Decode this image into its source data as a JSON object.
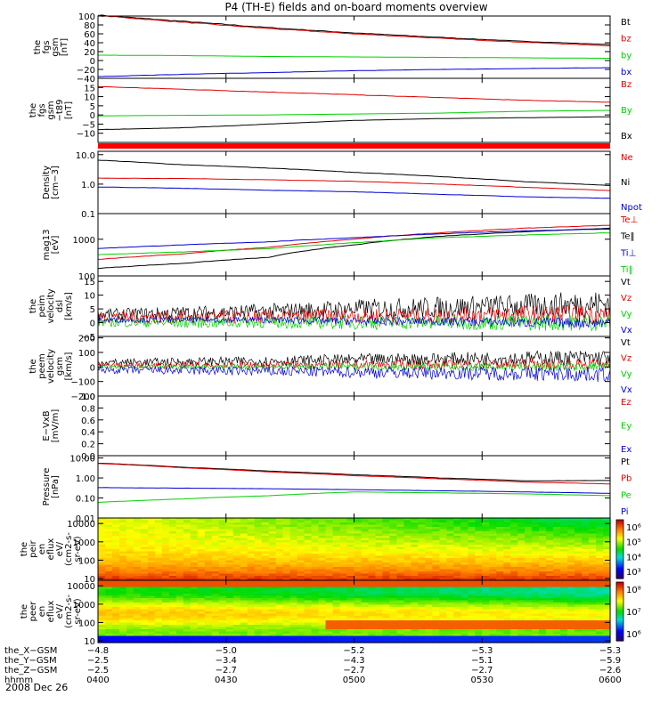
{
  "title": "P4 (TH-E) fields and on-board moments overview",
  "date": "2008 Dec 26",
  "colors": {
    "black": "#000000",
    "red": "#e00000",
    "green": "#00d000",
    "blue": "#0000d0",
    "bar": "#ff0000"
  },
  "chart_data": [
    {
      "id": "p1",
      "type": "line",
      "ylabel": [
        "the",
        "fgs",
        "gsm",
        "[nT]"
      ],
      "ylim": [
        -40,
        100
      ],
      "yticks": [
        {
          "v": 100,
          "t": "100"
        },
        {
          "v": 80,
          "t": "80"
        },
        {
          "v": 60,
          "t": "60"
        },
        {
          "v": 40,
          "t": "40"
        },
        {
          "v": 20,
          "t": "20"
        },
        {
          "v": 0,
          "t": "0"
        },
        {
          "v": -20,
          "t": "−20"
        },
        {
          "v": -40,
          "t": "−40"
        }
      ],
      "series": [
        {
          "name": "Bt",
          "color": "black",
          "values": [
            102,
            88,
            74,
            62,
            52,
            43,
            36
          ]
        },
        {
          "name": "bz",
          "color": "red",
          "values": [
            101,
            86,
            72,
            60,
            50,
            41,
            33
          ]
        },
        {
          "name": "by",
          "color": "green",
          "values": [
            12,
            11,
            9,
            8,
            7,
            6,
            5
          ]
        },
        {
          "name": "bx",
          "color": "blue",
          "values": [
            -36,
            -31,
            -27,
            -23,
            -20,
            -18,
            -16
          ]
        }
      ]
    },
    {
      "id": "p2",
      "type": "line",
      "ylabel": [
        "the",
        "fgs",
        "gsm",
        "−t89",
        "[nT]"
      ],
      "ylim": [
        -15,
        20
      ],
      "yticks": [
        {
          "v": 15,
          "t": "15"
        },
        {
          "v": 10,
          "t": "10"
        },
        {
          "v": 5,
          "t": "5"
        },
        {
          "v": 0,
          "t": "0"
        },
        {
          "v": -5,
          "t": "−5"
        },
        {
          "v": -10,
          "t": "−10"
        }
      ],
      "series": [
        {
          "name": "Bz",
          "color": "red",
          "values": [
            15.5,
            14,
            12.5,
            11,
            9.5,
            8,
            7
          ]
        },
        {
          "name": "By",
          "color": "green",
          "values": [
            -0.5,
            -0.2,
            0,
            0.5,
            1,
            2,
            2.5
          ]
        },
        {
          "name": "Bx",
          "color": "black",
          "values": [
            -8,
            -7,
            -5,
            -3,
            -2,
            -1.5,
            -1
          ]
        }
      ]
    },
    {
      "id": "p3",
      "type": "line",
      "scale": "log",
      "ylabel": [
        "Density",
        "[cm−3]"
      ],
      "ylim": [
        0.1,
        13
      ],
      "yticks": [
        {
          "v": 10,
          "t": "10.0"
        },
        {
          "v": 1,
          "t": "1.0"
        },
        {
          "v": 0.1,
          "t": "0.1"
        }
      ],
      "series": [
        {
          "name": "Ne",
          "color": "red",
          "values": [
            1.6,
            1.55,
            1.4,
            1.25,
            1.0,
            0.78,
            0.6
          ]
        },
        {
          "name": "Ni",
          "color": "black",
          "values": [
            6.5,
            4.5,
            3.5,
            2.5,
            1.8,
            1.2,
            0.9
          ]
        },
        {
          "name": "Npot",
          "color": "blue",
          "values": [
            0.8,
            0.72,
            0.62,
            0.55,
            0.45,
            0.37,
            0.33
          ]
        }
      ]
    },
    {
      "id": "p4",
      "type": "line",
      "scale": "log",
      "ylabel": [
        "mag13",
        "[eV]"
      ],
      "ylim": [
        100,
        5000
      ],
      "yticks": [
        {
          "v": 1000,
          "t": "1000"
        },
        {
          "v": 100,
          "t": "100"
        }
      ],
      "series": [
        {
          "name": "Te⊥",
          "color": "red",
          "values": [
            280,
            400,
            600,
            1000,
            1500,
            2000,
            2400
          ]
        },
        {
          "name": "Te‖",
          "color": "black",
          "values": [
            160,
            220,
            320,
            700,
            1200,
            1600,
            2000
          ]
        },
        {
          "name": "Ti⊥",
          "color": "blue",
          "values": [
            560,
            700,
            850,
            1100,
            1400,
            1700,
            1900
          ]
        },
        {
          "name": "Ti‖",
          "color": "green",
          "values": [
            380,
            450,
            550,
            800,
            1100,
            1300,
            1500
          ]
        }
      ]
    },
    {
      "id": "p5",
      "type": "line",
      "noisy": true,
      "ylabel": [
        "the",
        "peim",
        "velocity",
        "dsl",
        "[km/s]"
      ],
      "ylim": [
        -5,
        17
      ],
      "yticks": [
        {
          "v": 15,
          "t": "15"
        },
        {
          "v": 10,
          "t": "10"
        },
        {
          "v": 5,
          "t": "5"
        },
        {
          "v": 0,
          "t": "0"
        },
        {
          "v": -5,
          "t": "−5"
        }
      ],
      "series": [
        {
          "name": "Vt",
          "color": "black",
          "base": [
            3,
            3.5,
            4,
            5,
            5.5,
            6,
            7
          ],
          "amp": [
            2,
            2.5,
            3,
            3.5,
            4,
            4.5,
            5
          ]
        },
        {
          "name": "Vz",
          "color": "red",
          "base": [
            2,
            2,
            2,
            2.5,
            2.5,
            3,
            3
          ],
          "amp": [
            2,
            2.5,
            2.5,
            3,
            3,
            3.5,
            3.5
          ]
        },
        {
          "name": "Vy",
          "color": "green",
          "base": [
            0,
            0,
            0,
            0,
            0,
            0,
            0
          ],
          "amp": [
            1.5,
            2,
            2,
            2.5,
            2.5,
            3,
            3
          ]
        },
        {
          "name": "Vx",
          "color": "blue",
          "base": [
            1,
            1,
            1,
            0.5,
            0.5,
            0,
            0
          ],
          "amp": [
            1,
            1,
            1.2,
            1.5,
            1.5,
            1.8,
            2
          ]
        }
      ]
    },
    {
      "id": "p6",
      "type": "line",
      "noisy": true,
      "ylabel": [
        "the",
        "peem",
        "velocity",
        "gsm",
        "[km/s]"
      ],
      "ylim": [
        -200,
        210
      ],
      "yticks": [
        {
          "v": 200,
          "t": "200"
        },
        {
          "v": 100,
          "t": "100"
        },
        {
          "v": 0,
          "t": "0"
        },
        {
          "v": -100,
          "t": "−100"
        },
        {
          "v": -200,
          "t": "−200"
        }
      ],
      "series": [
        {
          "name": "Vt",
          "color": "black",
          "base": [
            30,
            35,
            40,
            50,
            55,
            60,
            65
          ],
          "amp": [
            25,
            30,
            35,
            40,
            45,
            50,
            55
          ]
        },
        {
          "name": "Vz",
          "color": "red",
          "base": [
            10,
            10,
            12,
            15,
            15,
            18,
            20
          ],
          "amp": [
            20,
            25,
            28,
            30,
            32,
            35,
            38
          ]
        },
        {
          "name": "Vy",
          "color": "green",
          "base": [
            0,
            0,
            0,
            0,
            0,
            0,
            0
          ],
          "amp": [
            15,
            18,
            20,
            22,
            25,
            28,
            30
          ]
        },
        {
          "name": "Vx",
          "color": "blue",
          "base": [
            -20,
            -25,
            -30,
            -35,
            -40,
            -45,
            -50
          ],
          "amp": [
            25,
            30,
            35,
            40,
            45,
            50,
            55
          ]
        }
      ]
    },
    {
      "id": "p7",
      "type": "line",
      "ylabel": [
        "E−VxB",
        "[mV/m]"
      ],
      "ylim": [
        0,
        1
      ],
      "yticks": [
        {
          "v": 1,
          "t": "1.0"
        },
        {
          "v": 0.8,
          "t": "0.8"
        },
        {
          "v": 0.6,
          "t": "0.6"
        },
        {
          "v": 0.4,
          "t": "0.4"
        },
        {
          "v": 0.2,
          "t": "0.2"
        },
        {
          "v": 0,
          "t": "0.0"
        }
      ],
      "series": [
        {
          "name": "Ez",
          "color": "red",
          "values": []
        },
        {
          "name": "Ey",
          "color": "green",
          "values": []
        },
        {
          "name": "Ex",
          "color": "blue",
          "values": []
        }
      ]
    },
    {
      "id": "p8",
      "type": "line",
      "scale": "log",
      "ylabel": [
        "Pressure",
        "[nPa]"
      ],
      "ylim": [
        0.01,
        13
      ],
      "yticks": [
        {
          "v": 10,
          "t": "10.00"
        },
        {
          "v": 1,
          "t": "1.00"
        },
        {
          "v": 0.1,
          "t": "0.10"
        },
        {
          "v": 0.01,
          "t": "0.01"
        }
      ],
      "series": [
        {
          "name": "Pt",
          "color": "black",
          "values": [
            5.5,
            3.4,
            2.2,
            1.45,
            1.0,
            0.72,
            0.75
          ]
        },
        {
          "name": "Pb",
          "color": "red",
          "values": [
            5.3,
            3.2,
            2.0,
            1.3,
            0.9,
            0.62,
            0.5
          ]
        },
        {
          "name": "Pe",
          "color": "green",
          "values": [
            0.06,
            0.09,
            0.13,
            0.2,
            0.18,
            0.16,
            0.13
          ]
        },
        {
          "name": "Pi",
          "color": "blue",
          "values": [
            0.33,
            0.31,
            0.29,
            0.26,
            0.23,
            0.2,
            0.17
          ]
        }
      ]
    },
    {
      "id": "p9",
      "type": "heatmap",
      "ylabel": [
        "the",
        "peir",
        "en",
        "eflux",
        "eV/",
        "(cm2-s-",
        "sr-eV)"
      ],
      "ylim": [
        8,
        20000
      ],
      "yticks": [
        {
          "v": 10000,
          "t": "10000"
        },
        {
          "v": 1000,
          "t": "1000"
        },
        {
          "v": 100,
          "t": "100"
        },
        {
          "v": 10,
          "t": "10"
        }
      ],
      "colorbar": [
        "10⁶",
        "10⁵",
        "10⁴",
        "10³"
      ],
      "crange": [
        2.5,
        6.8
      ]
    },
    {
      "id": "p10",
      "type": "heatmap",
      "ylabel": [
        "the",
        "peer",
        "en",
        "eflux",
        "eV/",
        "(cm2-s-",
        "sr-eV)"
      ],
      "ylim": [
        8,
        20000
      ],
      "yticks": [
        {
          "v": 10000,
          "t": "10000"
        },
        {
          "v": 1000,
          "t": "1000"
        },
        {
          "v": 100,
          "t": "100"
        },
        {
          "v": 10,
          "t": "10"
        }
      ],
      "colorbar": [
        "10⁸",
        "10⁷",
        "10⁶"
      ],
      "crange": [
        5.7,
        8.4
      ]
    }
  ],
  "xaxis": {
    "ticks": [
      {
        "value": "0400",
        "x": "−4.8",
        "y": "−2.5",
        "z": "−2.5"
      },
      {
        "value": "0430",
        "x": "−5.0",
        "y": "−3.4",
        "z": "−2.7"
      },
      {
        "value": "0500",
        "x": "−5.2",
        "y": "−4.3",
        "z": "−2.7"
      },
      {
        "value": "0530",
        "x": "−5.3",
        "y": "−5.1",
        "z": "−2.7"
      },
      {
        "value": "0600",
        "x": "−5.3",
        "y": "−5.9",
        "z": "−2.6"
      }
    ],
    "row_labels": [
      "the_X−GSM",
      "the_Y−GSM",
      "the_Z−GSM",
      "hhmm"
    ]
  }
}
